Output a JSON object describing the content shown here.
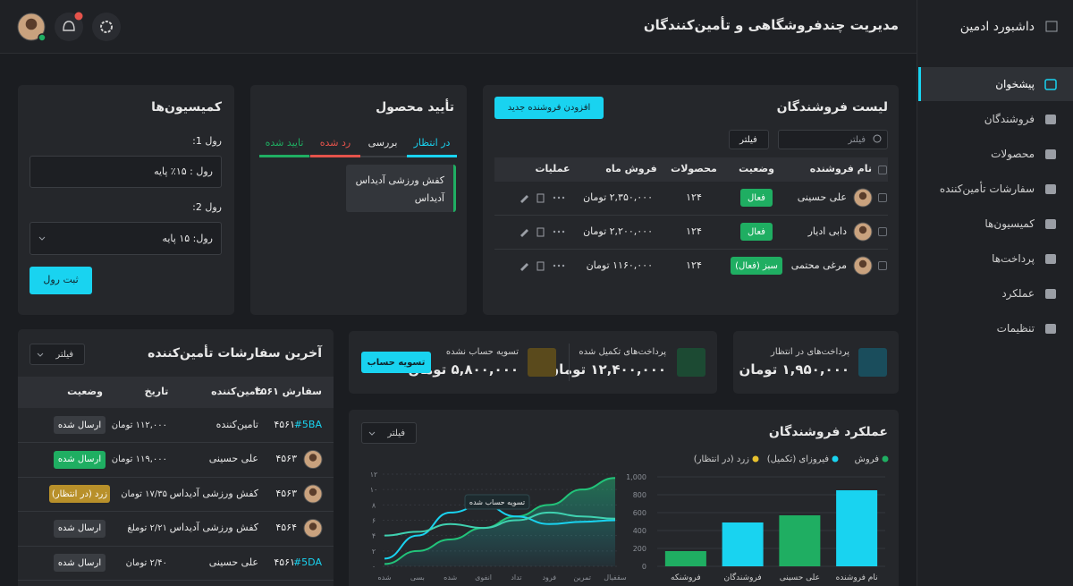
{
  "header": {
    "title": "مدیریت چندفروشگاهی و تأمین‌کنندگان"
  },
  "sidebar": {
    "title": "داشبورد ادمین",
    "active": 0,
    "menu": [
      "پیشخوان",
      "فروشندگان",
      "محصولات",
      "سفارشات تأمین‌کننده",
      "کمیسیون‌ها",
      "پرداخت‌ها",
      "عملکرد",
      "تنظیمات"
    ]
  },
  "vendors": {
    "title": "لیست فروشندگان",
    "add_button": "افزودن فروشنده جدید",
    "search_placeholder": "فیلتر",
    "filter_button": "فیلتر",
    "columns": [
      "نام فروشنده",
      "وضعیت",
      "محصولات",
      "فروش ماه",
      "عملیات"
    ],
    "rows": [
      {
        "name": "علی حسینی",
        "status": "فعال",
        "status_color": "#1fae62",
        "products": "۱۲۴",
        "sales": "۲,۳۵۰,۰۰۰ تومان"
      },
      {
        "name": "دابی ادیار",
        "status": "فعال",
        "status_color": "#1fae62",
        "products": "۱۲۴",
        "sales": "۲,۲۰۰,۰۰۰ تومان"
      },
      {
        "name": "مرغی محتمی",
        "status": "سبز (فعال)",
        "status_color": "#1fae62",
        "products": "۱۲۴",
        "sales": "۱۱۶۰,۰۰۰ تومان"
      }
    ]
  },
  "product_approval": {
    "title": "تأیید محصول",
    "tabs": [
      {
        "label": "در انتظار",
        "color": "#19d3f0"
      },
      {
        "label": "بررسی",
        "color": "#e6e6e6"
      },
      {
        "label": "رد شده",
        "color": "#e5534b"
      },
      {
        "label": "تایید شده",
        "color": "#1fae62"
      }
    ],
    "card": "کفش ورزشی آدیداس آدیداس"
  },
  "commissions": {
    "title": "کمیسیون‌ها",
    "rule1_label": "رول 1:",
    "rule1_value": "رول : ۱۵٪ پایه",
    "rule2_label": "رول 2:",
    "rule2_value": "رول: ۱۵ پایه",
    "submit": "ثبت رول"
  },
  "payments": {
    "pending": {
      "label": "پرداخت‌های در انتظار",
      "value": "۱,۹۵۰,۰۰۰ تومان"
    },
    "completed": {
      "label": "پرداخت‌های تکمیل شده",
      "value": "۱۲,۴۰۰,۰۰۰ تومان"
    },
    "unsettled": {
      "label": "تسویه حساب نشده",
      "value": "۵,۸۰۰,۰۰۰ تومان"
    },
    "settle_button": "تسویه حساب"
  },
  "orders": {
    "title": "آخرین سفارشات تأمین‌کننده",
    "filter": "فیلتر",
    "columns": [
      "سفارش ۴۵۶۱",
      "تامین‌کننده",
      "تاریخ",
      "وضعیت"
    ],
    "rows": [
      {
        "code": "#5BA",
        "id": "۴۵۶۱",
        "supplier": "تامین‌کننده",
        "amount": "۱۱۲,۰۰۰ تومان",
        "status": "ارسال شده",
        "status_color": "#3a3d42"
      },
      {
        "id": "۴۵۶۳",
        "supplier": "علی حسینی",
        "amount": "۱۱۹,۰۰۰ تومان",
        "status": "ارسال شده",
        "status_color": "#1fae62"
      },
      {
        "id": "۴۵۶۳",
        "supplier": "کفش ورزشی آدیداس",
        "amount": "۱۷/۳۵ تومان",
        "status": "زرد (در انتظار)",
        "status_color": "#b8902a"
      },
      {
        "id": "۴۵۶۴",
        "supplier": "کفش ورزشی آدیداس",
        "amount": "۲/۲۱ توملغ",
        "status": "ارسال شده",
        "status_color": "#3a3d42"
      },
      {
        "code": "#5DA",
        "id": "۴۵۶۱",
        "supplier": "علی حسینی",
        "amount": "۲/۴۰ تومان",
        "status": "ارسال شده",
        "status_color": "#3a3d42"
      }
    ]
  },
  "performance": {
    "title": "عملکرد فروشندگان",
    "filter": "فیلتر",
    "legend": [
      {
        "name": "فروش",
        "color": "#1fae62"
      },
      {
        "name": "فیروزای (تکمیل)",
        "color": "#19d3f0"
      },
      {
        "name": "زرد (در انتظار)",
        "color": "#e8c12e"
      }
    ]
  },
  "chart_data": [
    {
      "type": "line",
      "categories": [
        "شده",
        "بسی",
        "شده",
        "انفوی",
        "تداد",
        "فرود",
        "تمرین",
        "سقفیال"
      ],
      "series": [
        {
          "color": "#22c47a",
          "area": true,
          "values": [
            0.3,
            2,
            3.5,
            5,
            6.5,
            8,
            10,
            11.5
          ]
        },
        {
          "color": "#19d3f0",
          "area": false,
          "values": [
            1,
            4,
            7,
            8,
            6.5,
            5.5,
            5.8,
            6
          ]
        },
        {
          "color": "#3fd1b0",
          "area": false,
          "values": [
            4,
            4.5,
            5.5,
            5,
            6,
            7,
            6.5,
            6.2
          ]
        }
      ],
      "ylim": [
        0,
        12
      ],
      "yticks": [
        {
          "value": 0,
          "label": "۰"
        },
        {
          "value": 2,
          "label": "۲"
        },
        {
          "value": 4,
          "label": "۴"
        },
        {
          "value": 6,
          "label": "۶"
        },
        {
          "value": 8,
          "label": "۸"
        },
        {
          "value": 10,
          "label": "۱۰"
        },
        {
          "value": 12,
          "label": "۱۲"
        }
      ],
      "annotation": "تسویه حساب شده",
      "grid": true
    },
    {
      "type": "bar",
      "categories": [
        "فروشنکه",
        "فروشندگان",
        "علی حسینی",
        "نام فروشنده"
      ],
      "values": [
        170,
        490,
        570,
        850
      ],
      "colors": [
        "#1fae62",
        "#19d3f0",
        "#1fae62",
        "#19d3f0"
      ],
      "ylim": [
        0,
        1000
      ],
      "yticks": [
        0,
        200,
        400,
        600,
        800,
        {
          "value": 1000,
          "label": "1,000"
        }
      ],
      "grid": true
    }
  ]
}
